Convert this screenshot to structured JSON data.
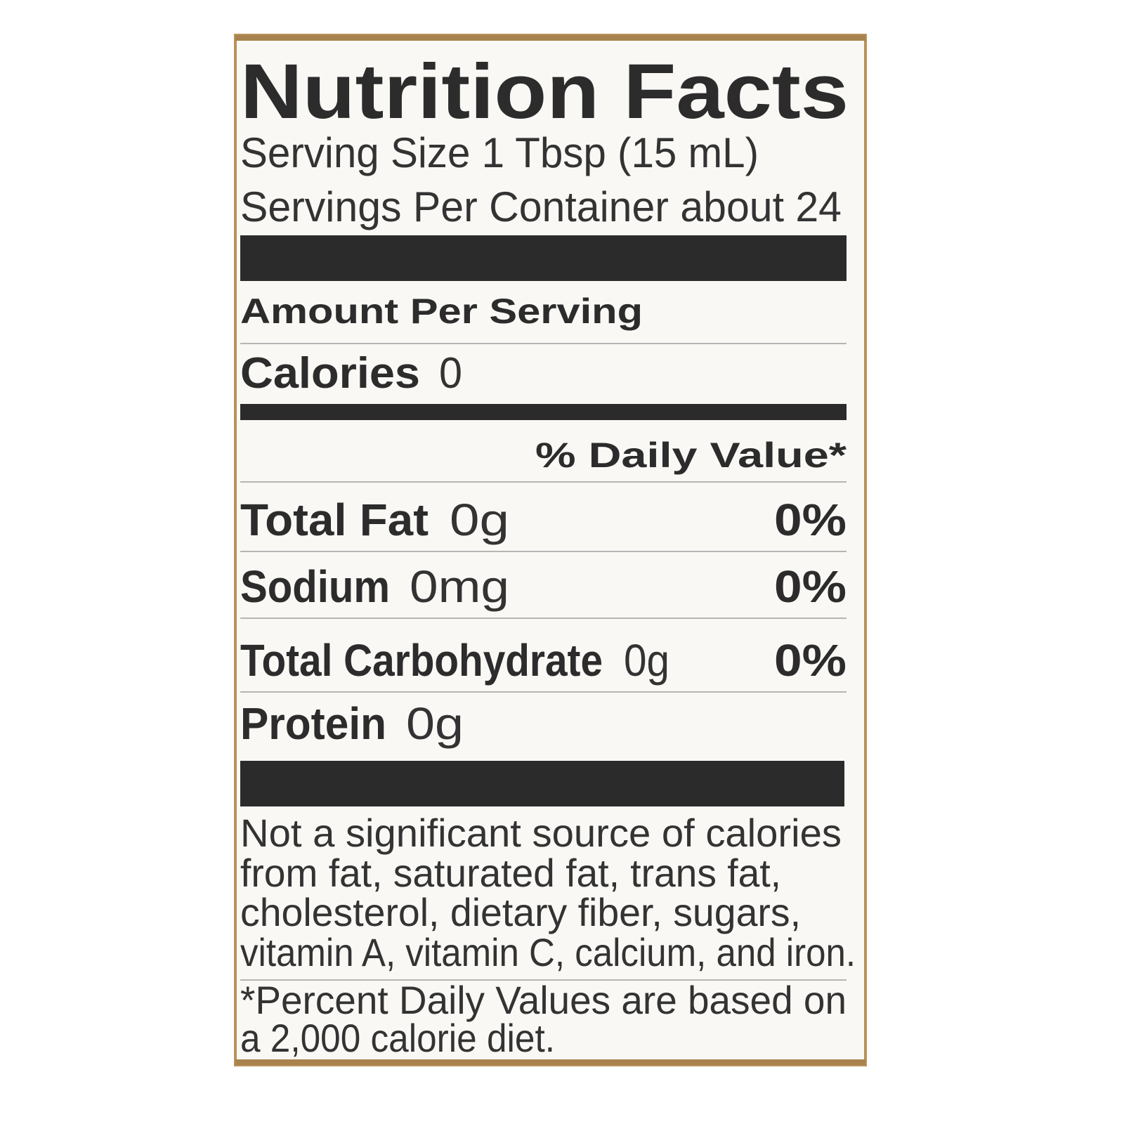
{
  "title": "Nutrition Facts",
  "serving_size": "Serving Size 1 Tbsp (15 mL)",
  "servings_per_container": "Servings Per Container about 24",
  "amount_per_serving": "Amount Per Serving",
  "calories": {
    "label": "Calories",
    "amount": "0"
  },
  "daily_value_header": "% Daily Value*",
  "nutrients": [
    {
      "label": "Total Fat",
      "amount": "0g",
      "daily_value": "0%"
    },
    {
      "label": "Sodium",
      "amount": "0mg",
      "daily_value": "0%"
    },
    {
      "label": "Total Carbohydrate",
      "amount": "0g",
      "daily_value": "0%"
    },
    {
      "label": "Protein",
      "amount": "0g"
    }
  ],
  "footnote_lines": [
    "Not a significant source of calories",
    "from fat, saturated fat, trans fat,",
    "cholesterol, dietary fiber, sugars,",
    "vitamin A, vitamin C, calcium, and iron."
  ],
  "daily_value_note_lines": [
    "*Percent Daily Values are based on",
    "a 2,000 calorie diet."
  ]
}
